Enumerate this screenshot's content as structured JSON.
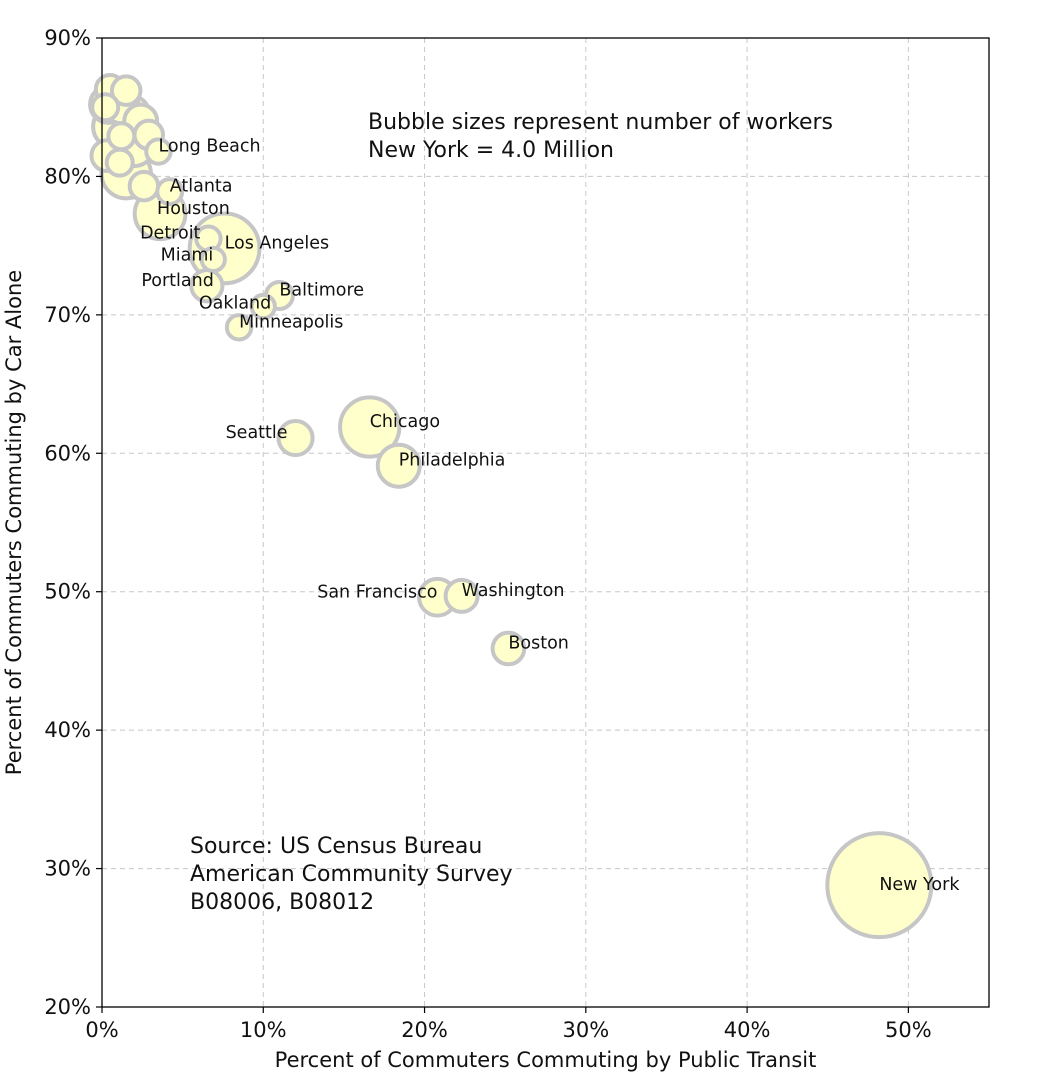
{
  "chart_data": {
    "type": "scatter",
    "xlabel": "Percent of Commuters Commuting by Public Transit",
    "ylabel": "Percent of Commuters Commuting by Car Alone",
    "xlim": [
      0,
      55
    ],
    "ylim": [
      20,
      90
    ],
    "x_ticks": [
      0,
      10,
      20,
      30,
      40,
      50
    ],
    "x_tick_labels": [
      "0%",
      "10%",
      "20%",
      "30%",
      "40%",
      "50%"
    ],
    "y_ticks": [
      20,
      30,
      40,
      50,
      60,
      70,
      80,
      90
    ],
    "y_tick_labels": [
      "20%",
      "30%",
      "40%",
      "50%",
      "60%",
      "70%",
      "80%",
      "90%"
    ],
    "grid": true,
    "bubble_fill": "#ffffcc",
    "bubble_edge": "#c6c6c6",
    "annotations": [
      [
        "Bubble sizes represent number of workers",
        "New York = 4.0 Million"
      ],
      [
        "Source: US Census Bureau",
        "American Community Survey",
        "B08006, B08012"
      ]
    ],
    "points": [
      {
        "label": "New York",
        "x": 48.2,
        "y": 28.8,
        "workers_million": 4.0
      },
      {
        "label": "Boston",
        "x": 25.2,
        "y": 45.9,
        "workers_million": 0.37
      },
      {
        "label": "Washington",
        "x": 22.3,
        "y": 49.7,
        "workers_million": 0.38
      },
      {
        "label": "San Francisco",
        "x": 20.8,
        "y": 49.6,
        "workers_million": 0.5
      },
      {
        "label": "Philadelphia",
        "x": 18.4,
        "y": 59.1,
        "workers_million": 0.65
      },
      {
        "label": "Chicago",
        "x": 16.6,
        "y": 61.9,
        "workers_million": 1.3
      },
      {
        "label": "Seattle",
        "x": 12.0,
        "y": 61.1,
        "workers_million": 0.43
      },
      {
        "label": "Minneapolis",
        "x": 8.5,
        "y": 69.1,
        "workers_million": 0.22
      },
      {
        "label": "Baltimore",
        "x": 11.0,
        "y": 71.4,
        "workers_million": 0.27
      },
      {
        "label": "Oakland",
        "x": 10.0,
        "y": 70.6,
        "workers_million": 0.2
      },
      {
        "label": "Portland",
        "x": 6.5,
        "y": 72.1,
        "workers_million": 0.36
      },
      {
        "label": "Los Angeles",
        "x": 7.6,
        "y": 74.8,
        "workers_million": 1.8
      },
      {
        "label": "Miami",
        "x": 6.9,
        "y": 74.0,
        "workers_million": 0.2
      },
      {
        "label": "Detroit",
        "x": 6.6,
        "y": 75.5,
        "workers_million": 0.22
      },
      {
        "label": "Houston",
        "x": 3.6,
        "y": 77.3,
        "workers_million": 0.95
      },
      {
        "label": "Atlanta",
        "x": 4.2,
        "y": 78.9,
        "workers_million": 0.23
      },
      {
        "label": "Long Beach",
        "x": 3.5,
        "y": 81.8,
        "workers_million": 0.22
      },
      {
        "label": "",
        "x": 2.6,
        "y": 79.3,
        "workers_million": 0.3
      },
      {
        "label": "",
        "x": 1.5,
        "y": 80.2,
        "workers_million": 0.9
      },
      {
        "label": "",
        "x": 2.0,
        "y": 82.2,
        "workers_million": 0.6
      },
      {
        "label": "",
        "x": 1.1,
        "y": 81.0,
        "workers_million": 0.25
      },
      {
        "label": "",
        "x": 1.2,
        "y": 82.9,
        "workers_million": 0.25
      },
      {
        "label": "",
        "x": 0.8,
        "y": 83.6,
        "workers_million": 0.7
      },
      {
        "label": "",
        "x": 2.4,
        "y": 84.0,
        "workers_million": 0.4
      },
      {
        "label": "",
        "x": 1.8,
        "y": 84.5,
        "workers_million": 0.5
      },
      {
        "label": "",
        "x": 0.4,
        "y": 85.2,
        "workers_million": 0.5
      },
      {
        "label": "",
        "x": 1.2,
        "y": 85.1,
        "workers_million": 0.45
      },
      {
        "label": "",
        "x": 0.5,
        "y": 86.3,
        "workers_million": 0.3
      },
      {
        "label": "",
        "x": 0.2,
        "y": 85.0,
        "workers_million": 0.25
      },
      {
        "label": "",
        "x": 1.5,
        "y": 86.2,
        "workers_million": 0.3
      },
      {
        "label": "",
        "x": 0.3,
        "y": 81.5,
        "workers_million": 0.35
      },
      {
        "label": "",
        "x": 2.9,
        "y": 83.0,
        "workers_million": 0.3
      }
    ]
  }
}
